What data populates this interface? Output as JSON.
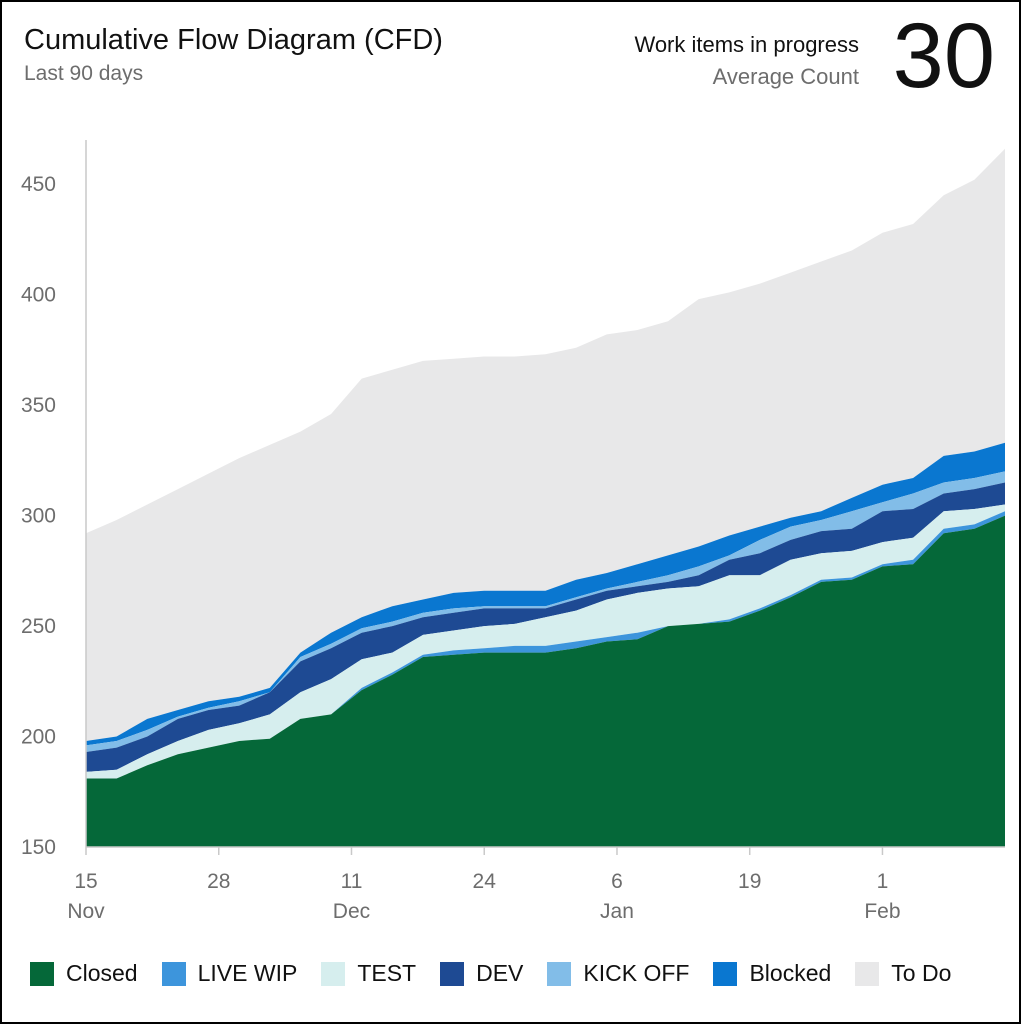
{
  "header": {
    "title": "Cumulative Flow Diagram (CFD)",
    "subtitle": "Last 90 days",
    "metric_label": "Work items in progress",
    "metric_sub": "Average Count",
    "metric_value": "30"
  },
  "chart_data": {
    "type": "area",
    "stacked": true,
    "title": "Cumulative Flow Diagram (CFD)",
    "ylim": [
      150,
      470
    ],
    "yticks": [
      150,
      200,
      250,
      300,
      350,
      400,
      450
    ],
    "x_ticks": [
      {
        "day": 0,
        "label": "15",
        "month": "Nov"
      },
      {
        "day": 13,
        "label": "28",
        "month": ""
      },
      {
        "day": 26,
        "label": "11",
        "month": "Dec"
      },
      {
        "day": 39,
        "label": "24",
        "month": ""
      },
      {
        "day": 52,
        "label": "6",
        "month": "Jan"
      },
      {
        "day": 65,
        "label": "19",
        "month": ""
      },
      {
        "day": 78,
        "label": "1",
        "month": "Feb"
      }
    ],
    "x_days": [
      0,
      3,
      6,
      9,
      12,
      15,
      18,
      21,
      24,
      27,
      30,
      33,
      36,
      39,
      42,
      45,
      48,
      51,
      54,
      57,
      60,
      63,
      66,
      69,
      72,
      75,
      78,
      81,
      84,
      87,
      90
    ],
    "series": [
      {
        "name": "Closed",
        "color": "#056839",
        "cumulative": [
          181,
          181,
          187,
          192,
          195,
          198,
          199,
          208,
          210,
          221,
          228,
          236,
          237,
          238,
          238,
          238,
          240,
          243,
          244,
          250,
          251,
          252,
          257,
          263,
          270,
          271,
          277,
          278,
          292,
          294,
          300
        ]
      },
      {
        "name": "LIVE WIP",
        "color": "#3d95dc",
        "cumulative": [
          181,
          181,
          187,
          192,
          195,
          198,
          199,
          208,
          210,
          222,
          229,
          237,
          239,
          240,
          241,
          241,
          243,
          245,
          247,
          250,
          251,
          253,
          258,
          264,
          271,
          272,
          278,
          280,
          294,
          296,
          302
        ]
      },
      {
        "name": "TEST",
        "color": "#d6eeee",
        "cumulative": [
          184,
          185,
          192,
          198,
          203,
          206,
          210,
          220,
          226,
          235,
          238,
          246,
          248,
          250,
          251,
          254,
          257,
          262,
          265,
          267,
          268,
          273,
          273,
          280,
          283,
          284,
          288,
          290,
          302,
          303,
          305
        ]
      },
      {
        "name": "DEV",
        "color": "#1e4a93",
        "cumulative": [
          193,
          195,
          200,
          208,
          212,
          214,
          220,
          234,
          240,
          247,
          250,
          254,
          256,
          258,
          258,
          258,
          262,
          266,
          268,
          270,
          273,
          280,
          283,
          289,
          293,
          294,
          302,
          303,
          310,
          312,
          315
        ]
      },
      {
        "name": "KICK OFF",
        "color": "#82bde8",
        "cumulative": [
          196,
          198,
          203,
          209,
          213,
          216,
          220,
          236,
          242,
          249,
          252,
          256,
          258,
          259,
          259,
          259,
          263,
          267,
          270,
          273,
          277,
          282,
          289,
          295,
          298,
          302,
          306,
          310,
          315,
          317,
          320
        ]
      },
      {
        "name": "Blocked",
        "color": "#0a77d0",
        "cumulative": [
          198,
          200,
          208,
          212,
          216,
          218,
          222,
          238,
          247,
          254,
          259,
          262,
          265,
          266,
          266,
          266,
          271,
          274,
          278,
          282,
          286,
          291,
          295,
          299,
          302,
          308,
          314,
          317,
          327,
          329,
          333
        ]
      },
      {
        "name": "To Do",
        "color": "#e8e8e9",
        "cumulative": [
          292,
          298,
          305,
          312,
          319,
          326,
          332,
          338,
          346,
          362,
          366,
          370,
          371,
          372,
          372,
          373,
          376,
          382,
          384,
          388,
          398,
          401,
          405,
          410,
          415,
          420,
          428,
          432,
          445,
          452,
          466
        ]
      }
    ]
  }
}
